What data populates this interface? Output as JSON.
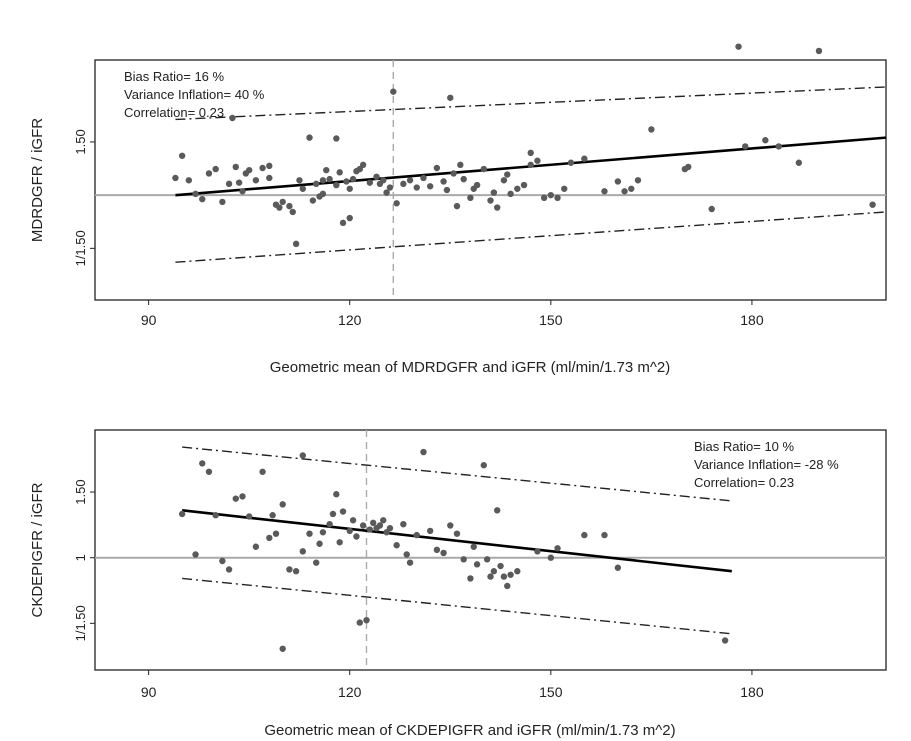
{
  "chart_data": [
    {
      "type": "scatter",
      "ylabel": "MDRDGFR / iGFR",
      "xlabel": "Geometric mean of  MDRDGFR  and iGFR (ml/min/1.73 m^2)",
      "x_ticks": [
        90,
        120,
        150,
        180
      ],
      "xlim": [
        82,
        200
      ],
      "y_ticks": [
        {
          "label": "1.50",
          "value": 1.5
        },
        {
          "label": "1/1.50",
          "value": 0.667
        }
      ],
      "ylim_log": [
        0.45,
        2.8
      ],
      "annotations": [
        "Bias Ratio= 16 %",
        "Variance Inflation= 40 %",
        "Correlation= 0.23"
      ],
      "annotation_position": "top-left",
      "reference_line": 1,
      "mean_x_line": 126.5,
      "regression": {
        "x": [
          94,
          200
        ],
        "y": [
          1.0,
          1.55
        ]
      },
      "limits_upper": {
        "x": [
          94,
          200
        ],
        "y": [
          1.78,
          2.28
        ]
      },
      "limits_lower": {
        "x": [
          94,
          200
        ],
        "y": [
          0.6,
          0.88
        ]
      },
      "points": [
        [
          94,
          1.14
        ],
        [
          95,
          1.35
        ],
        [
          96,
          1.12
        ],
        [
          97,
          1.01
        ],
        [
          98,
          0.97
        ],
        [
          99,
          1.18
        ],
        [
          100,
          1.22
        ],
        [
          101,
          0.95
        ],
        [
          102,
          1.09
        ],
        [
          102.5,
          1.8
        ],
        [
          103,
          1.24
        ],
        [
          103.5,
          1.1
        ],
        [
          104,
          1.03
        ],
        [
          104.5,
          1.18
        ],
        [
          105,
          1.21
        ],
        [
          106,
          1.12
        ],
        [
          107,
          1.23
        ],
        [
          108,
          1.14
        ],
        [
          108,
          1.25
        ],
        [
          109,
          0.93
        ],
        [
          109.5,
          0.91
        ],
        [
          110,
          0.95
        ],
        [
          111,
          0.92
        ],
        [
          111.5,
          0.88
        ],
        [
          112,
          0.69
        ],
        [
          112.5,
          1.12
        ],
        [
          113,
          1.05
        ],
        [
          114,
          1.55
        ],
        [
          114.5,
          0.96
        ],
        [
          115,
          1.09
        ],
        [
          115.5,
          0.99
        ],
        [
          116,
          1.01
        ],
        [
          116,
          1.12
        ],
        [
          116.5,
          1.21
        ],
        [
          117,
          1.13
        ],
        [
          118,
          1.54
        ],
        [
          118,
          1.08
        ],
        [
          118.5,
          1.19
        ],
        [
          119,
          0.81
        ],
        [
          119.5,
          1.11
        ],
        [
          120,
          0.84
        ],
        [
          120,
          1.05
        ],
        [
          120.5,
          1.13
        ],
        [
          121,
          1.2
        ],
        [
          121.5,
          1.22
        ],
        [
          122,
          1.26
        ],
        [
          123,
          1.1
        ],
        [
          124,
          1.15
        ],
        [
          124.5,
          1.09
        ],
        [
          125,
          1.12
        ],
        [
          125.5,
          1.02
        ],
        [
          126,
          1.06
        ],
        [
          126.5,
          2.2
        ],
        [
          127,
          0.94
        ],
        [
          128,
          1.09
        ],
        [
          129,
          1.12
        ],
        [
          130,
          1.06
        ],
        [
          131,
          1.14
        ],
        [
          132,
          1.07
        ],
        [
          133,
          1.23
        ],
        [
          134,
          1.11
        ],
        [
          134.5,
          1.04
        ],
        [
          135,
          2.1
        ],
        [
          135.5,
          1.18
        ],
        [
          136,
          0.92
        ],
        [
          136.5,
          1.26
        ],
        [
          137,
          1.13
        ],
        [
          138,
          0.98
        ],
        [
          138.5,
          1.05
        ],
        [
          139,
          1.08
        ],
        [
          140,
          1.22
        ],
        [
          141,
          0.96
        ],
        [
          141.5,
          1.02
        ],
        [
          142,
          0.91
        ],
        [
          143,
          1.12
        ],
        [
          143.5,
          1.17
        ],
        [
          144,
          1.01
        ],
        [
          145,
          1.05
        ],
        [
          146,
          1.08
        ],
        [
          147,
          1.26
        ],
        [
          147,
          1.38
        ],
        [
          148,
          1.3
        ],
        [
          149,
          0.98
        ],
        [
          150,
          1.0
        ],
        [
          151,
          0.98
        ],
        [
          152,
          1.05
        ],
        [
          153,
          1.28
        ],
        [
          155,
          1.32
        ],
        [
          158,
          1.03
        ],
        [
          160,
          1.11
        ],
        [
          161,
          1.03
        ],
        [
          162,
          1.05
        ],
        [
          163,
          1.12
        ],
        [
          165,
          1.65
        ],
        [
          170,
          1.22
        ],
        [
          170.5,
          1.24
        ],
        [
          174,
          0.9
        ],
        [
          178,
          3.1
        ],
        [
          179,
          1.45
        ],
        [
          182,
          1.52
        ],
        [
          184,
          1.45
        ],
        [
          187,
          1.28
        ],
        [
          190,
          3.0
        ],
        [
          198,
          0.93
        ]
      ]
    },
    {
      "type": "scatter",
      "ylabel": "CKDEPIGFR / iGFR",
      "xlabel": "Geometric mean of  CKDEPIGFR  and iGFR (ml/min/1.73 m^2)",
      "x_ticks": [
        90,
        120,
        150,
        180
      ],
      "xlim": [
        82,
        200
      ],
      "y_ticks": [
        {
          "label": "1.50",
          "value": 1.5
        },
        {
          "label": "1",
          "value": 1
        },
        {
          "label": "1/1.50",
          "value": 0.667
        }
      ],
      "ylim_log": [
        0.5,
        2.2
      ],
      "annotations": [
        "Bias Ratio= 10 %",
        "Variance Inflation= -28 %",
        "Correlation= 0.23"
      ],
      "annotation_position": "top-right",
      "reference_line": 1,
      "mean_x_line": 122.5,
      "regression": {
        "x": [
          95,
          177
        ],
        "y": [
          1.34,
          0.92
        ]
      },
      "limits_upper": {
        "x": [
          95,
          177
        ],
        "y": [
          1.98,
          1.42
        ]
      },
      "limits_lower": {
        "x": [
          95,
          177
        ],
        "y": [
          0.88,
          0.625
        ]
      },
      "points": [
        [
          95,
          1.31
        ],
        [
          97,
          1.02
        ],
        [
          98,
          1.79
        ],
        [
          99,
          1.7
        ],
        [
          100,
          1.3
        ],
        [
          101,
          0.98
        ],
        [
          102,
          0.93
        ],
        [
          103,
          1.44
        ],
        [
          104,
          1.46
        ],
        [
          105,
          1.29
        ],
        [
          106,
          1.07
        ],
        [
          107,
          1.7
        ],
        [
          108,
          1.13
        ],
        [
          108.5,
          1.3
        ],
        [
          109,
          1.16
        ],
        [
          110,
          1.39
        ],
        [
          111,
          0.93
        ],
        [
          112,
          0.92
        ],
        [
          113,
          1.04
        ],
        [
          113,
          1.88
        ],
        [
          114,
          1.16
        ],
        [
          115,
          0.97
        ],
        [
          115.5,
          1.09
        ],
        [
          116,
          1.17
        ],
        [
          117,
          1.23
        ],
        [
          117.5,
          1.31
        ],
        [
          118,
          1.48
        ],
        [
          118.5,
          1.1
        ],
        [
          119,
          1.33
        ],
        [
          120,
          1.18
        ],
        [
          120.5,
          1.26
        ],
        [
          121,
          1.14
        ],
        [
          121.5,
          0.67
        ],
        [
          122,
          1.22
        ],
        [
          122.5,
          0.68
        ],
        [
          123,
          1.19
        ],
        [
          123.5,
          1.24
        ],
        [
          124,
          1.2
        ],
        [
          124.5,
          1.22
        ],
        [
          125,
          1.26
        ],
        [
          125.5,
          1.17
        ],
        [
          126,
          1.2
        ],
        [
          127,
          1.08
        ],
        [
          128,
          1.23
        ],
        [
          128.5,
          1.02
        ],
        [
          129,
          0.97
        ],
        [
          130,
          1.15
        ],
        [
          131,
          1.92
        ],
        [
          132,
          1.18
        ],
        [
          133,
          1.05
        ],
        [
          134,
          1.03
        ],
        [
          135,
          1.22
        ],
        [
          136,
          1.16
        ],
        [
          137,
          0.99
        ],
        [
          138,
          0.88
        ],
        [
          138.5,
          1.07
        ],
        [
          139,
          0.96
        ],
        [
          140,
          1.77
        ],
        [
          140.5,
          0.99
        ],
        [
          141,
          0.89
        ],
        [
          141.5,
          0.92
        ],
        [
          142,
          1.34
        ],
        [
          142.5,
          0.95
        ],
        [
          143,
          0.89
        ],
        [
          143.5,
          0.84
        ],
        [
          144,
          0.9
        ],
        [
          145,
          0.92
        ],
        [
          148,
          1.04
        ],
        [
          150,
          1.0
        ],
        [
          151,
          1.06
        ],
        [
          155,
          1.15
        ],
        [
          158,
          1.15
        ],
        [
          160,
          0.94
        ],
        [
          176,
          0.6
        ],
        [
          110,
          0.57
        ]
      ]
    }
  ]
}
